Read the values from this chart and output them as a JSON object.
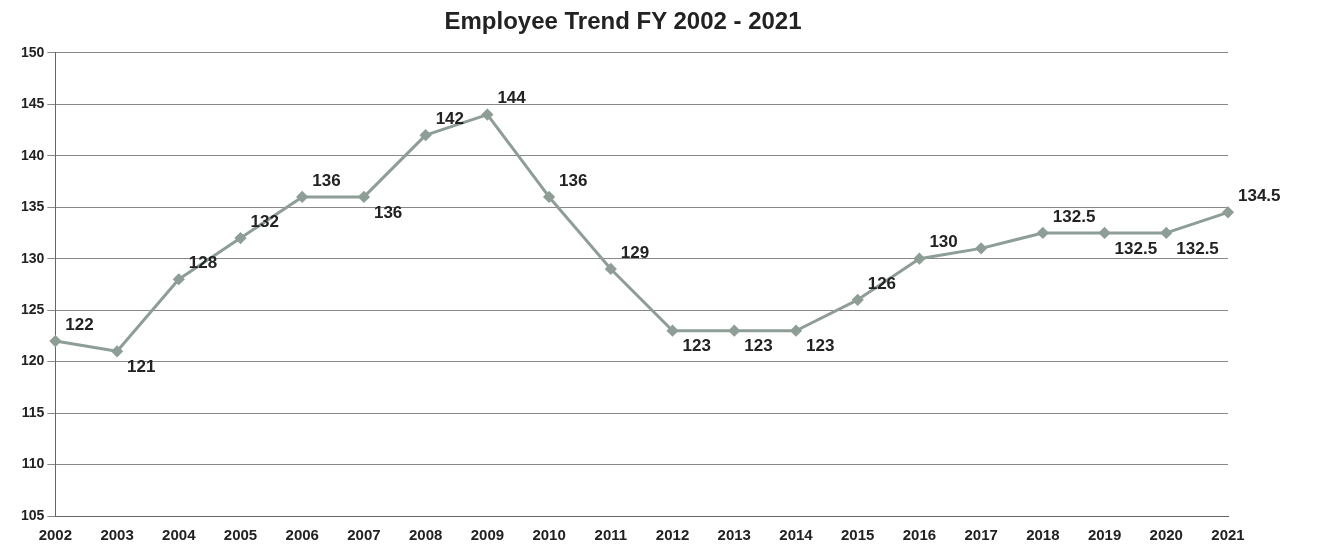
{
  "chart_data": {
    "type": "line",
    "title": "Employee Trend FY 2002 - 2021",
    "categories": [
      "2002",
      "2003",
      "2004",
      "2005",
      "2006",
      "2007",
      "2008",
      "2009",
      "2010",
      "2011",
      "2012",
      "2013",
      "2014",
      "2015",
      "2016",
      "2017",
      "2018",
      "2019",
      "2020",
      "2021"
    ],
    "series": [
      {
        "color": "#8e9e97",
        "values": [
          122,
          121,
          128,
          132,
          136,
          136,
          142,
          144,
          136,
          129,
          123,
          123,
          123,
          126,
          130,
          131,
          132.5,
          132.5,
          132.5,
          134.5
        ],
        "value_labels": [
          "122",
          "121",
          "128",
          "132",
          "136",
          "136",
          "142",
          "144",
          "136",
          "129",
          "123",
          "123",
          "123",
          "126",
          "130",
          null,
          "132.5",
          "132.5",
          "132.5",
          "134.5"
        ]
      }
    ],
    "ylim": [
      105,
      150
    ],
    "yticks": [
      105,
      110,
      115,
      120,
      125,
      130,
      135,
      140,
      145,
      150
    ],
    "grid": "y",
    "legend": false,
    "marker": "diamond",
    "line_style": "solid"
  }
}
